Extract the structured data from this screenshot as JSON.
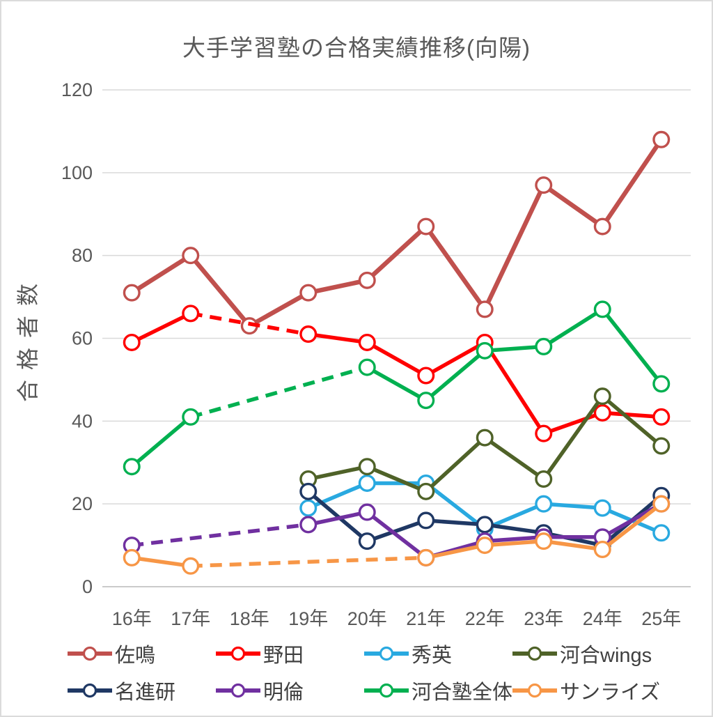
{
  "chart_data": {
    "type": "line",
    "title": "大手学習塾の合格実績推移(向陽)",
    "xlabel": "",
    "ylabel": "合格者数",
    "categories": [
      "16年",
      "17年",
      "18年",
      "19年",
      "20年",
      "21年",
      "22年",
      "23年",
      "24年",
      "25年"
    ],
    "ylim": [
      0,
      120
    ],
    "ytick_step": 20,
    "grid": "horizontal-only",
    "legend_position": "bottom-two-rows",
    "gridline_color": "#d9d9d9",
    "axis_text_color": "#595959",
    "legend_text_color": "#3f3f3f",
    "series": [
      {
        "name": "佐鳴",
        "color": "#c0504d",
        "values": [
          71,
          80,
          63,
          71,
          74,
          87,
          67,
          97,
          87,
          108
        ]
      },
      {
        "name": "野田",
        "color": "#ff0000",
        "values": [
          59,
          66,
          null,
          61,
          59,
          51,
          59,
          37,
          42,
          41
        ]
      },
      {
        "name": "秀英",
        "color": "#29a9e0",
        "values": [
          null,
          null,
          null,
          19,
          25,
          25,
          14,
          20,
          19,
          13
        ]
      },
      {
        "name": "河合wings",
        "color": "#4f6228",
        "values": [
          null,
          null,
          null,
          26,
          29,
          23,
          36,
          26,
          46,
          34
        ]
      },
      {
        "name": "名進研",
        "color": "#1f3864",
        "values": [
          null,
          null,
          null,
          23,
          11,
          16,
          15,
          13,
          10,
          22
        ]
      },
      {
        "name": "明倫",
        "color": "#7030a0",
        "values": [
          10,
          null,
          null,
          15,
          18,
          7,
          11,
          12,
          12,
          20
        ]
      },
      {
        "name": "河合塾全体",
        "color": "#00b050",
        "values": [
          29,
          41,
          null,
          null,
          53,
          45,
          57,
          58,
          67,
          49
        ]
      },
      {
        "name": "サンライズ",
        "color": "#f79646",
        "values": [
          7,
          5,
          null,
          null,
          null,
          7,
          10,
          11,
          9,
          20
        ]
      }
    ],
    "dashed_gap_note": "null gaps are bridged with dashed segments of the series color"
  }
}
